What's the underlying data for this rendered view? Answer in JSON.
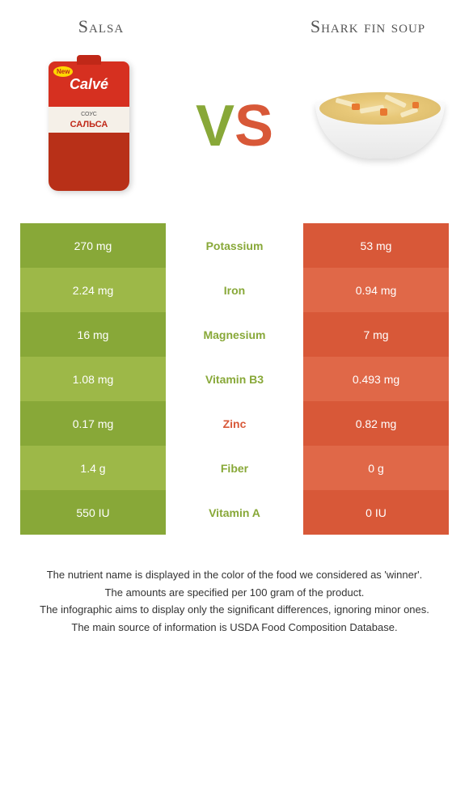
{
  "left_food": {
    "title": "Salsa"
  },
  "right_food": {
    "title": "Shark fin soup"
  },
  "vs": {
    "v": "V",
    "s": "S"
  },
  "salsa_pack": {
    "new": "New",
    "brand": "Calvé",
    "label": "СОУС",
    "name": "САЛЬСА"
  },
  "colors": {
    "green_dark": "#88a838",
    "green_light": "#9db848",
    "orange_dark": "#d85838",
    "orange_light": "#e06848",
    "mid_bg": "#ffffff"
  },
  "rows": [
    {
      "nutrient": "Potassium",
      "left": "270 mg",
      "right": "53 mg",
      "winner": "left"
    },
    {
      "nutrient": "Iron",
      "left": "2.24 mg",
      "right": "0.94 mg",
      "winner": "left"
    },
    {
      "nutrient": "Magnesium",
      "left": "16 mg",
      "right": "7 mg",
      "winner": "left"
    },
    {
      "nutrient": "Vitamin B3",
      "left": "1.08 mg",
      "right": "0.493 mg",
      "winner": "left"
    },
    {
      "nutrient": "Zinc",
      "left": "0.17 mg",
      "right": "0.82 mg",
      "winner": "right"
    },
    {
      "nutrient": "Fiber",
      "left": "1.4 g",
      "right": "0 g",
      "winner": "left"
    },
    {
      "nutrient": "Vitamin A",
      "left": "550 IU",
      "right": "0 IU",
      "winner": "left"
    }
  ],
  "footer": [
    "The nutrient name is displayed in the color of the food we considered as 'winner'.",
    "The amounts are specified per 100 gram of the product.",
    "The infographic aims to display only the significant differences, ignoring minor ones.",
    "The main source of information is USDA Food Composition Database."
  ]
}
